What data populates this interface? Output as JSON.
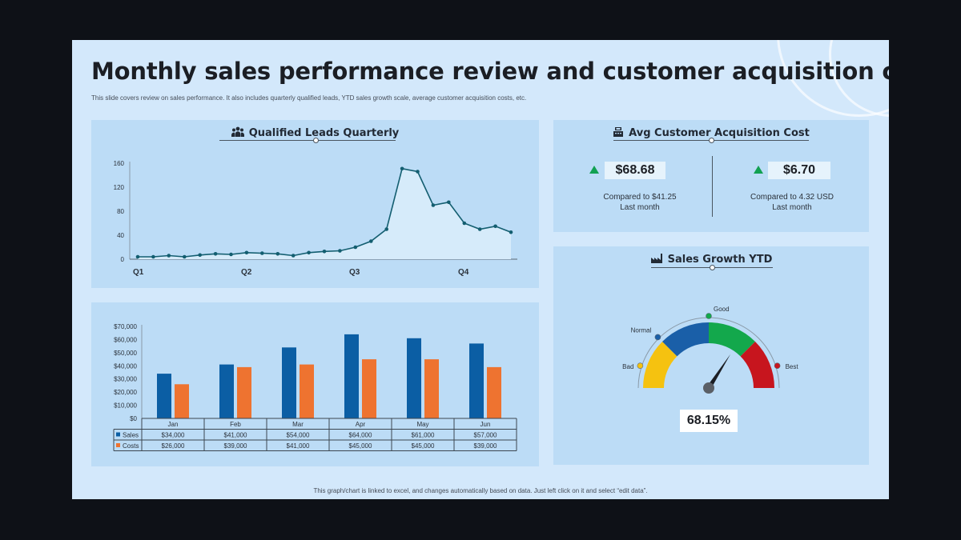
{
  "title": "Monthly sales performance review and customer acquisition cost",
  "subtitle": "This slide covers review on sales performance. It also includes quarterly qualified leads, YTD sales growth scale, average customer acquisition costs, etc.",
  "footer": "This graph/chart is linked to excel, and changes automatically based on data. Just left click on it and select “edit data”.",
  "leads_panel": {
    "title": "Qualified Leads Quarterly",
    "icon": "team-icon"
  },
  "cac_panel": {
    "title": "Avg Customer Acquisition Cost",
    "icon": "cash-register-icon",
    "items": [
      {
        "value": "$68.68",
        "compare": "Compared  to $41.25",
        "period": "Last month",
        "trend": "up"
      },
      {
        "value": "$6.70",
        "compare": "Compared  to 4.32 USD",
        "period": "Last month",
        "trend": "up"
      }
    ],
    "trend_color": "#12a152"
  },
  "growth_panel": {
    "title": "Sales Growth YTD",
    "icon": "factory-icon",
    "value": "68.15%"
  },
  "colors": {
    "sales": "#0b5ea4",
    "costs": "#ee7330",
    "line": "#135e70",
    "bad": "#f5c210",
    "normal": "#1a5fa8",
    "good": "#13a84c",
    "best": "#c7151e"
  },
  "chart_data": [
    {
      "type": "area",
      "title": "Qualified Leads Quarterly",
      "x_tick_labels": [
        "Q1",
        "Q2",
        "Q3",
        "Q4"
      ],
      "y_ticks": [
        0,
        40,
        80,
        120,
        160
      ],
      "ylim": [
        0,
        160
      ],
      "grid": false,
      "values": [
        4,
        4,
        6,
        4,
        7,
        9,
        8,
        11,
        10,
        9,
        6,
        11,
        13,
        14,
        20,
        30,
        50,
        151,
        146,
        90,
        95,
        60,
        50,
        55,
        45
      ]
    },
    {
      "type": "bar",
      "categories": [
        "Jan",
        "Feb",
        "Mar",
        "Apr",
        "May",
        "Jun"
      ],
      "series": [
        {
          "name": "Sales",
          "values": [
            34000,
            41000,
            54000,
            64000,
            61000,
            57000
          ],
          "labels": [
            "$34,000",
            "$41,000",
            "$54,000",
            "$64,000",
            "$61,000",
            "$57,000"
          ]
        },
        {
          "name": "Costs",
          "values": [
            26000,
            39000,
            41000,
            45000,
            45000,
            39000
          ],
          "labels": [
            "$26,000",
            "$39,000",
            "$41,000",
            "$45,000",
            "$45,000",
            "$39,000"
          ]
        }
      ],
      "ylim": [
        0,
        70000
      ],
      "y_tick_labels": [
        "$0",
        "$10,000",
        "$20,000",
        "$30,000",
        "$40,000",
        "$50,000",
        "$60,000",
        "$70,000"
      ],
      "legend": "data table below chart",
      "grid": false
    },
    {
      "type": "gauge",
      "title": "Sales Growth YTD",
      "value": 68.15,
      "range": [
        0,
        100
      ],
      "bands": [
        {
          "label": "Bad",
          "from": 0,
          "to": 25
        },
        {
          "label": "Normal",
          "from": 25,
          "to": 50
        },
        {
          "label": "Good",
          "from": 50,
          "to": 75
        },
        {
          "label": "Best",
          "from": 75,
          "to": 100
        }
      ]
    }
  ]
}
